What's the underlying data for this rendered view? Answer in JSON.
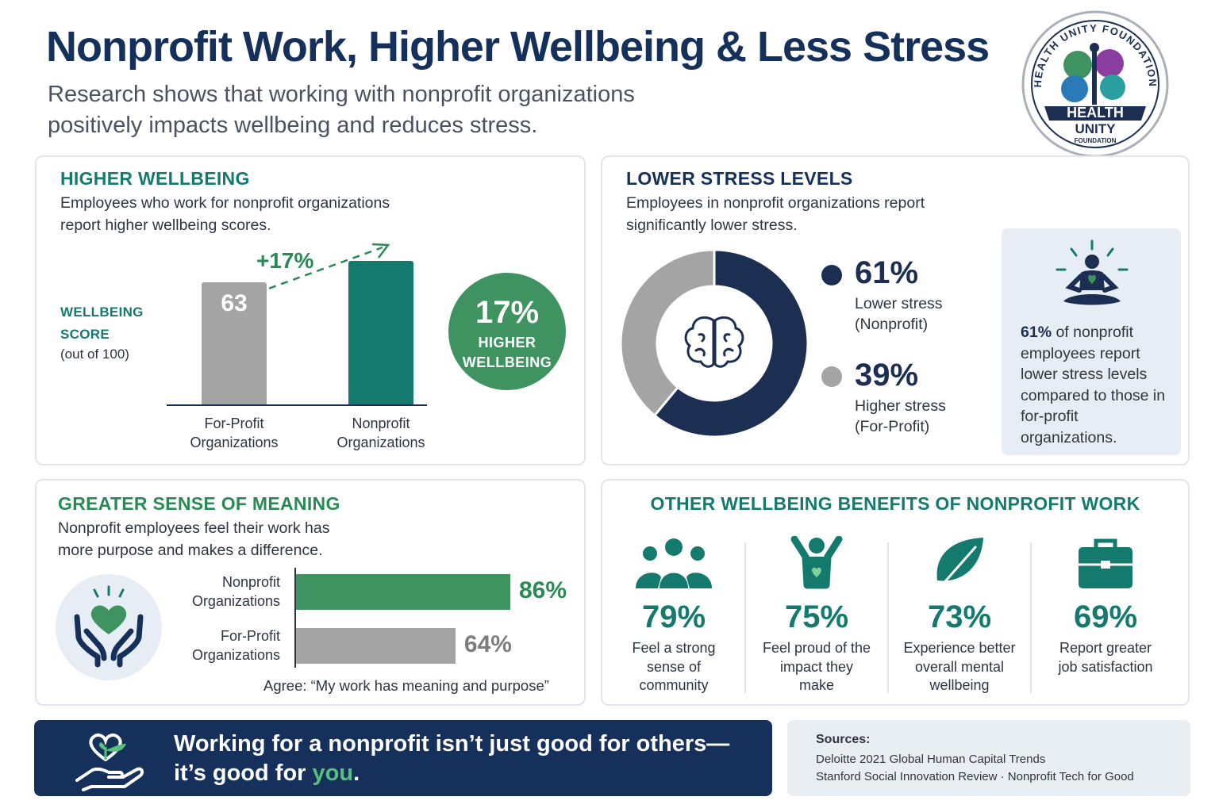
{
  "header": {
    "title": "Nonprofit Work, Higher Wellbeing & Less Stress",
    "subtitle_line1": "Research shows that working with nonprofit organizations",
    "subtitle_line2": "positively impacts wellbeing and reduces stress."
  },
  "logo": {
    "arc_text": "HEALTH UNITY FOUNDATION",
    "line1": "HEALTH",
    "line2": "UNITY",
    "line3": "FOUNDATION"
  },
  "wellbeing": {
    "title": "HIGHER WELLBEING",
    "desc_line1": "Employees who work for nonprofit organizations",
    "desc_line2": "report higher wellbeing scores.",
    "score_label_line1": "WELLBEING",
    "score_label_line2": "SCORE",
    "score_sub": "(out of 100)",
    "delta": "+17%",
    "badge_big": "17%",
    "badge_line1": "HIGHER",
    "badge_line2": "WELLBEING"
  },
  "stress": {
    "title": "LOWER STRESS LEVELS",
    "desc_line1": "Employees in nonprofit organizations report",
    "desc_line2": "significantly lower stress.",
    "item1_pct": "61%",
    "item1_line1": "Lower stress",
    "item1_line2": "(Nonprofit)",
    "item2_pct": "39%",
    "item2_line1": "Higher stress",
    "item2_line2": "(For-Profit)",
    "box_bold": "61%",
    "box_text_rest": " of nonprofit employees report lower stress levels compared to those in for-profit organizations."
  },
  "meaning": {
    "title": "GREATER SENSE OF MEANING",
    "desc_line1": "Nonprofit employees feel their work has",
    "desc_line2": "more purpose and makes a difference.",
    "caption": "Agree: “My work has meaning and purpose”"
  },
  "benefits": {
    "title": "OTHER WELLBEING BENEFITS OF NONPROFIT WORK",
    "items": [
      {
        "icon": "people-group-icon",
        "pct": "79%",
        "line1": "Feel a strong",
        "line2": "sense of",
        "line3": "community"
      },
      {
        "icon": "celebrating-person-icon",
        "pct": "75%",
        "line1": "Feel proud of the",
        "line2": "impact they",
        "line3": "make"
      },
      {
        "icon": "leaf-icon",
        "pct": "73%",
        "line1": "Experience better",
        "line2": "overall mental",
        "line3": "wellbeing"
      },
      {
        "icon": "briefcase-icon",
        "pct": "69%",
        "line1": "Report greater",
        "line2": "job satisfaction",
        "line3": ""
      }
    ]
  },
  "footer": {
    "banner_line1": "Working for a nonprofit isn’t just good for others—",
    "banner_line2_pre": "it’s good for ",
    "banner_line2_you": "you",
    "banner_line2_post": ".",
    "sources_title": "Sources:",
    "source1": "Deloitte 2021 Global Human Capital Trends",
    "source2": "Stanford Social Innovation Review  ·  Nonprofit Tech for Good"
  },
  "colors": {
    "navy": "#15305a",
    "teal": "#157a6e",
    "green": "#3e9361",
    "gray": "#a4a4a4",
    "light_bg": "#e6edf4"
  },
  "chart_data": [
    {
      "type": "bar",
      "title": "HIGHER WELLBEING",
      "ylabel": "WELLBEING SCORE (out of 100)",
      "categories": [
        "For-Profit Organizations",
        "Nonprofit Organizations"
      ],
      "values": [
        63,
        74
      ],
      "data_labels": [
        "63",
        ""
      ],
      "annotation": "+17%",
      "ylim": [
        0,
        100
      ]
    },
    {
      "type": "pie",
      "title": "LOWER STRESS LEVELS",
      "donut": true,
      "labels": [
        "Lower stress (Nonprofit)",
        "Higher stress (For-Profit)"
      ],
      "values": [
        61,
        39
      ],
      "colors": [
        "#1c2f52",
        "#a4a4a4"
      ]
    },
    {
      "type": "bar",
      "orientation": "horizontal",
      "title": "GREATER SENSE OF MEANING",
      "xlabel": "Agree: “My work has meaning and purpose”",
      "categories": [
        "Nonprofit Organizations",
        "For-Profit Organizations"
      ],
      "values": [
        86,
        64
      ],
      "colors": [
        "#3e9361",
        "#a4a4a4"
      ]
    }
  ]
}
